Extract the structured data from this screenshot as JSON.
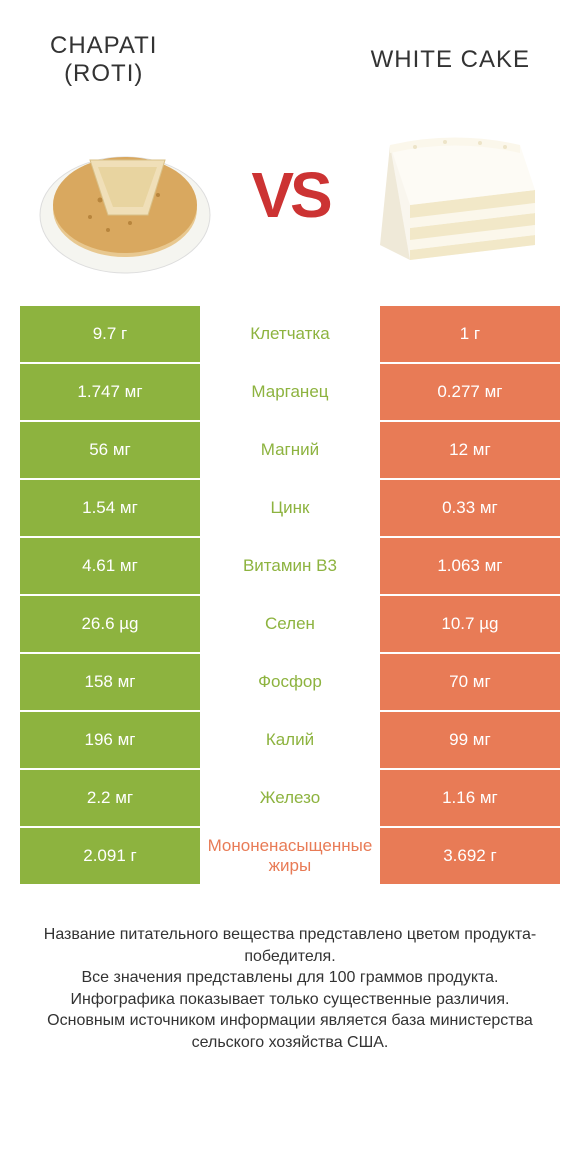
{
  "colors": {
    "left": "#8db33f",
    "right": "#e87b56",
    "vs": "#cc3333",
    "text": "#333333",
    "white": "#ffffff",
    "background": "#ffffff"
  },
  "typography": {
    "title_fontsize": 24,
    "vs_fontsize": 64,
    "cell_fontsize": 17,
    "footer_fontsize": 16
  },
  "titles": {
    "left": "CHAPATI\n(ROTI)",
    "right": "WHITE CAKE"
  },
  "vs_label": "VS",
  "comparison": {
    "type": "table",
    "columns": [
      "left_value",
      "nutrient",
      "right_value"
    ],
    "rows": [
      {
        "left": "9.7 г",
        "name": "Клетчатка",
        "right": "1 г",
        "winner": "left"
      },
      {
        "left": "1.747 мг",
        "name": "Марганец",
        "right": "0.277 мг",
        "winner": "left"
      },
      {
        "left": "56 мг",
        "name": "Магний",
        "right": "12 мг",
        "winner": "left"
      },
      {
        "left": "1.54 мг",
        "name": "Цинк",
        "right": "0.33 мг",
        "winner": "left"
      },
      {
        "left": "4.61 мг",
        "name": "Витамин B3",
        "right": "1.063 мг",
        "winner": "left"
      },
      {
        "left": "26.6 µg",
        "name": "Селен",
        "right": "10.7 µg",
        "winner": "left"
      },
      {
        "left": "158 мг",
        "name": "Фосфор",
        "right": "70 мг",
        "winner": "left"
      },
      {
        "left": "196 мг",
        "name": "Калий",
        "right": "99 мг",
        "winner": "left"
      },
      {
        "left": "2.2 мг",
        "name": "Железо",
        "right": "1.16 мг",
        "winner": "left"
      },
      {
        "left": "2.091 г",
        "name": "Мононенасыщенные жиры",
        "right": "3.692 г",
        "winner": "right"
      }
    ]
  },
  "footer": "Название питательного вещества представлено цветом продукта-победителя.\nВсе значения представлены для 100 граммов продукта.\nИнфографика показывает только существенные различия.\nОсновным источником информации является база министерства сельского хозяйства США."
}
